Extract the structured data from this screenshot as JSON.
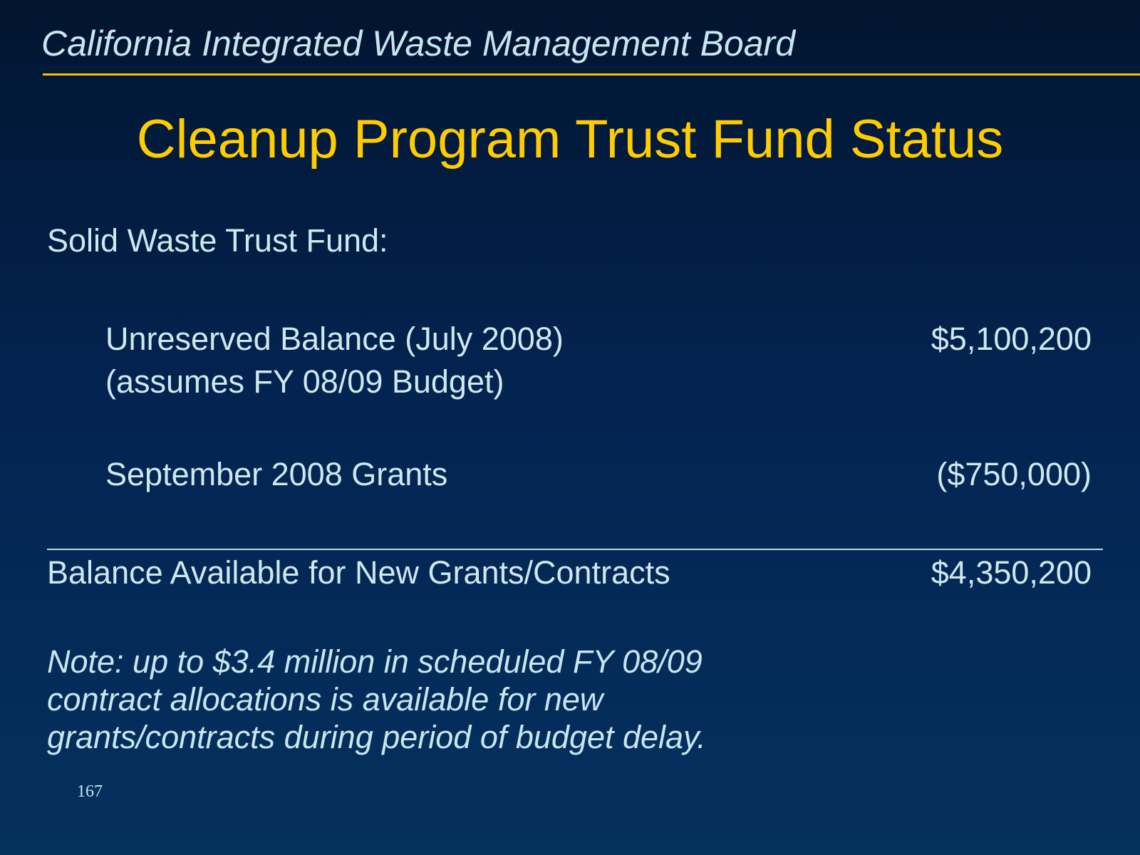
{
  "header": {
    "organization": "California Integrated Waste Management Board"
  },
  "slide": {
    "title": "Cleanup Program Trust Fund Status",
    "section_label": "Solid Waste Trust Fund:",
    "rows": [
      {
        "label_line1": "Unreserved Balance (July 2008)",
        "label_line2": "(assumes FY 08/09 Budget)",
        "value": "$5,100,200"
      },
      {
        "label_line1": "September 2008 Grants",
        "value": "($750,000)"
      }
    ],
    "total": {
      "label": "Balance Available for New Grants/Contracts",
      "value": "$4,350,200"
    },
    "note_lines": [
      "Note: up to $3.4 million in scheduled FY 08/09",
      "contract allocations is available for new",
      "grants/contracts during period of budget delay."
    ],
    "page_number": "167"
  },
  "colors": {
    "background_top": "#021530",
    "background_bottom": "#05315f",
    "accent": "#ffcc00",
    "text": "#cfe8ee"
  }
}
